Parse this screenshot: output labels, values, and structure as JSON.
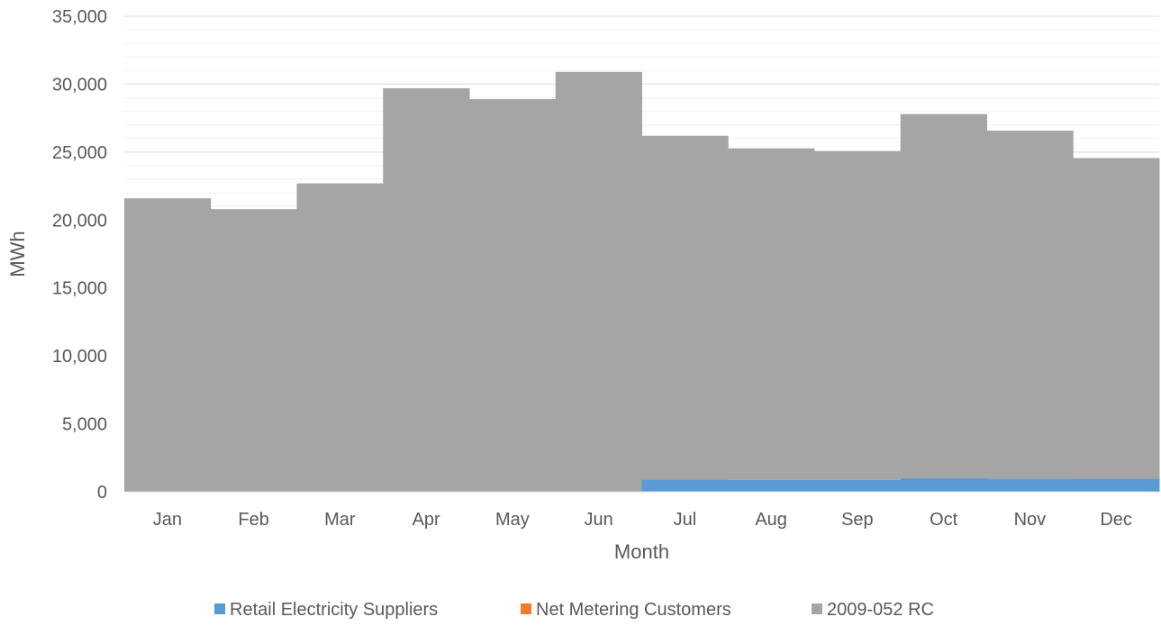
{
  "chart_data": {
    "type": "bar",
    "stacked": true,
    "title": "",
    "xlabel": "Month",
    "ylabel": "MWh",
    "ylim": [
      0,
      35000
    ],
    "major_tick_step": 5000,
    "minor_gridlines": true,
    "legend_position": "bottom",
    "y_tick_labels": [
      "0",
      "5,000",
      "10,000",
      "15,000",
      "20,000",
      "25,000",
      "30,000",
      "35,000"
    ],
    "categories": [
      "Jan",
      "Feb",
      "Mar",
      "Apr",
      "May",
      "Jun",
      "Jul",
      "Aug",
      "Sep",
      "Oct",
      "Nov",
      "Dec"
    ],
    "series": [
      {
        "name": "Retail Electricity Suppliers",
        "color": "#5b9bd5",
        "values": [
          0,
          0,
          0,
          0,
          0,
          0,
          900,
          880,
          880,
          1000,
          980,
          960
        ]
      },
      {
        "name": "Net Metering Customers",
        "color": "#ed7d31",
        "values": [
          0,
          0,
          0,
          0,
          0,
          0,
          0,
          0,
          0,
          0,
          0,
          0
        ]
      },
      {
        "name": "2009-052 RC",
        "color": "#a5a5a5",
        "values": [
          21600,
          20800,
          22700,
          29700,
          28900,
          30900,
          25300,
          24400,
          24200,
          26800,
          25600,
          23600
        ]
      }
    ]
  }
}
